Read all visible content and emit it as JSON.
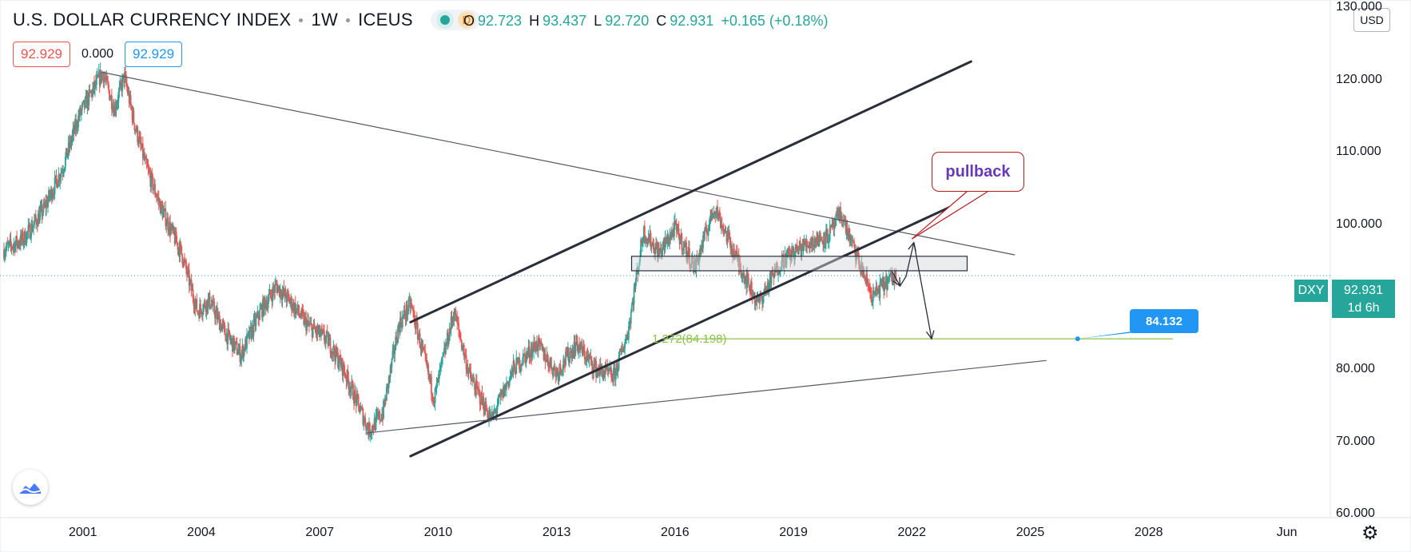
{
  "header": {
    "symbol_name": "U.S. DOLLAR CURRENCY INDEX",
    "interval": "1W",
    "exchange": "ICEUS",
    "market_status_icon": "green-dot-icon",
    "delay_badge": "D",
    "ohlc": {
      "o_label": "O",
      "o_value": "92.723",
      "h_label": "H",
      "h_value": "93.437",
      "l_label": "L",
      "l_value": "92.720",
      "c_label": "C",
      "c_value": "92.931",
      "change": "+0.165 (+0.18%)"
    }
  },
  "trade_boxes": {
    "sell": "92.929",
    "spread": "0.000",
    "buy": "92.929"
  },
  "currency_button": "USD",
  "last_price": {
    "symbol": "DXY",
    "value": "92.931",
    "countdown": "1d 6h"
  },
  "annotations": {
    "pullback": "pullback",
    "fib_label": "1.272(84.198)",
    "target_callout": "84.132"
  },
  "colors": {
    "up": "#26a69a",
    "down": "#ef5350",
    "fib": "#8bc34a",
    "callout": "#2196f3",
    "note_border": "#b71c1c",
    "note_text": "#673ab7"
  },
  "icons": {
    "logo": "tradingview-cloud-icon",
    "settings": "gear-icon"
  },
  "chart_data": {
    "type": "candlestick",
    "title": "U.S. DOLLAR CURRENCY INDEX",
    "xlabel": "",
    "ylabel": "",
    "yticks": [
      "130.000",
      "120.000",
      "110.000",
      "100.000",
      "80.000",
      "70.000",
      "60.000"
    ],
    "xticks": [
      "2001",
      "2004",
      "2007",
      "2010",
      "2013",
      "2016",
      "2019",
      "2022",
      "2025",
      "2028",
      "Jun"
    ],
    "ylim": [
      59.5,
      131
    ],
    "xlim": [
      1998.9,
      2032.6
    ],
    "last_close": 92.931,
    "path_keypoints": [
      [
        1999.0,
        96.5
      ],
      [
        1999.5,
        98.0
      ],
      [
        2000.0,
        102.0
      ],
      [
        2000.5,
        108.0
      ],
      [
        2000.9,
        115.0
      ],
      [
        2001.3,
        119.0
      ],
      [
        2001.5,
        121.0
      ],
      [
        2001.8,
        116.0
      ],
      [
        2002.05,
        120.5
      ],
      [
        2002.3,
        114.0
      ],
      [
        2002.6,
        108.0
      ],
      [
        2003.0,
        102.0
      ],
      [
        2003.5,
        96.0
      ],
      [
        2003.9,
        88.0
      ],
      [
        2004.2,
        89.5
      ],
      [
        2004.6,
        85.0
      ],
      [
        2005.0,
        82.0
      ],
      [
        2005.5,
        88.0
      ],
      [
        2005.9,
        91.5
      ],
      [
        2006.3,
        89.0
      ],
      [
        2006.7,
        86.0
      ],
      [
        2007.2,
        84.0
      ],
      [
        2007.6,
        80.0
      ],
      [
        2007.9,
        76.0
      ],
      [
        2008.25,
        71.5
      ],
      [
        2008.6,
        74.0
      ],
      [
        2009.0,
        86.0
      ],
      [
        2009.3,
        89.0
      ],
      [
        2009.9,
        76.0
      ],
      [
        2010.4,
        88.0
      ],
      [
        2010.8,
        79.0
      ],
      [
        2011.35,
        73.0
      ],
      [
        2011.9,
        80.0
      ],
      [
        2012.5,
        83.5
      ],
      [
        2013.0,
        79.5
      ],
      [
        2013.5,
        83.5
      ],
      [
        2014.0,
        80.0
      ],
      [
        2014.45,
        79.0
      ],
      [
        2014.8,
        85.0
      ],
      [
        2015.2,
        99.0
      ],
      [
        2015.6,
        96.0
      ],
      [
        2016.0,
        99.5
      ],
      [
        2016.5,
        94.0
      ],
      [
        2017.0,
        102.5
      ],
      [
        2017.5,
        96.0
      ],
      [
        2018.1,
        89.0
      ],
      [
        2018.7,
        95.0
      ],
      [
        2019.4,
        97.5
      ],
      [
        2019.9,
        98.5
      ],
      [
        2020.2,
        101.5
      ],
      [
        2020.5,
        97.0
      ],
      [
        2021.0,
        90.0
      ],
      [
        2021.35,
        92.0
      ],
      [
        2021.6,
        92.93
      ]
    ],
    "drawings": {
      "long_downtrend": {
        "from": [
          2001.5,
          121.0
        ],
        "to": [
          2024.6,
          95.8
        ]
      },
      "channel_upper": {
        "from": [
          2009.3,
          86.5
        ],
        "to": [
          2023.5,
          122.5
        ]
      },
      "channel_lower": {
        "from": [
          2009.3,
          68.0
        ],
        "to": [
          2023.8,
          104.5
        ]
      },
      "support_line": {
        "from": [
          2008.2,
          71.2
        ],
        "to": [
          2025.4,
          81.2
        ]
      },
      "zone": {
        "from": [
          2014.9,
          93.6
        ],
        "to": [
          2023.4,
          95.6
        ]
      },
      "fib_line": {
        "from": [
          2015.7,
          84.2
        ],
        "to": [
          2028.6,
          84.2
        ]
      },
      "projection_path": [
        [
          2021.5,
          93.5
        ],
        [
          2021.7,
          91.5
        ],
        [
          2021.85,
          92.8
        ],
        [
          2022.05,
          97.5
        ],
        [
          2022.5,
          84.2
        ]
      ]
    }
  }
}
